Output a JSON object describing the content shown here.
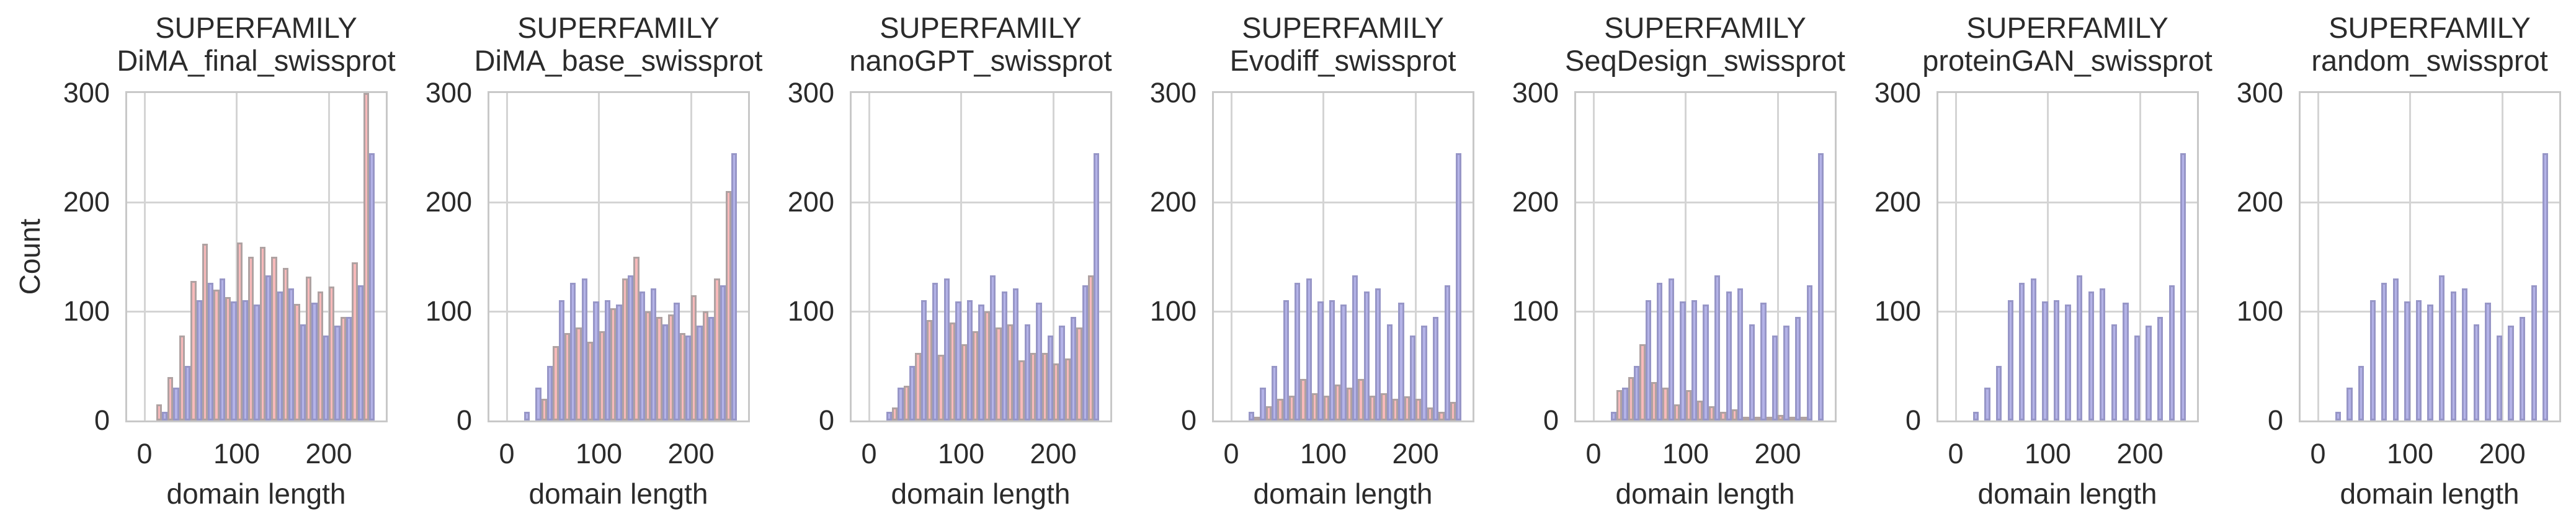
{
  "figure": {
    "suptitle": "SUPERFAMILY",
    "xlabel": "domain length",
    "ylabel": "Count"
  },
  "chart_data": {
    "type": "bar",
    "subtype": "dodged-histogram-small-multiples",
    "title": "SUPERFAMILY",
    "xlabel": "domain length",
    "ylabel": "Count",
    "xticks": [
      0,
      100,
      200
    ],
    "yticks": [
      0,
      100,
      200,
      300
    ],
    "xlim": [
      -19,
      262
    ],
    "ylim": [
      0,
      300
    ],
    "grid": "on",
    "legend": "none",
    "bins": {
      "start": 12.5,
      "width": 12.5,
      "count": 19
    },
    "bin_centers": [
      18.75,
      31.25,
      43.75,
      56.25,
      68.75,
      81.25,
      93.75,
      106.25,
      118.75,
      131.25,
      143.75,
      156.25,
      168.75,
      181.25,
      193.75,
      206.25,
      218.75,
      231.25,
      243.75
    ],
    "blue_reference": [
      8,
      30,
      50,
      110,
      126,
      130,
      109,
      110,
      106,
      133,
      118,
      121,
      88,
      108,
      78,
      87,
      95,
      124,
      245
    ],
    "panels": [
      {
        "title": "SUPERFAMILY",
        "subtitle": "DiMA_final_swissprot",
        "red": [
          15,
          40,
          78,
          128,
          162,
          120,
          113,
          163,
          150,
          159,
          150,
          140,
          107,
          132,
          118,
          123,
          95,
          145,
          300
        ]
      },
      {
        "title": "SUPERFAMILY",
        "subtitle": "DiMA_base_swissprot",
        "red": [
          0,
          0,
          20,
          68,
          80,
          85,
          72,
          82,
          103,
          130,
          150,
          100,
          95,
          97,
          80,
          115,
          100,
          130,
          210
        ]
      },
      {
        "title": "SUPERFAMILY",
        "subtitle": "nanoGPT_swissprot",
        "red": [
          0,
          12,
          32,
          62,
          92,
          60,
          90,
          70,
          82,
          100,
          85,
          88,
          55,
          62,
          62,
          52,
          57,
          85,
          133
        ]
      },
      {
        "title": "SUPERFAMILY",
        "subtitle": "Evodiff_swissprot",
        "red": [
          0,
          3,
          13,
          20,
          23,
          38,
          25,
          23,
          33,
          30,
          38,
          23,
          25,
          20,
          22,
          20,
          12,
          8,
          17
        ]
      },
      {
        "title": "SUPERFAMILY",
        "subtitle": "SeqDesign_swissprot",
        "red": [
          0,
          28,
          40,
          70,
          35,
          30,
          15,
          28,
          18,
          13,
          8,
          10,
          3,
          3,
          2,
          5,
          2,
          1,
          0
        ]
      },
      {
        "title": "SUPERFAMILY",
        "subtitle": "proteinGAN_swissprot",
        "red": [
          0,
          0,
          0,
          0,
          0,
          0,
          0,
          0,
          0,
          0,
          0,
          0,
          0,
          0,
          0,
          0,
          0,
          0,
          0
        ]
      },
      {
        "title": "SUPERFAMILY",
        "subtitle": "random_swissprot",
        "red": [
          0,
          0,
          0,
          0,
          0,
          0,
          0,
          0,
          0,
          0,
          0,
          0,
          0,
          0,
          0,
          0,
          0,
          0,
          0
        ]
      }
    ],
    "colors": {
      "red_fill": "#f8b9ba",
      "red_edge": "#afa2a2",
      "blue_fill": "#b4b3e8",
      "blue_edge": "#9796c7",
      "grid": "#d4d4d4",
      "spine": "#c8c8c8",
      "text": "#2b2b2b",
      "background": "#ffffff"
    }
  }
}
